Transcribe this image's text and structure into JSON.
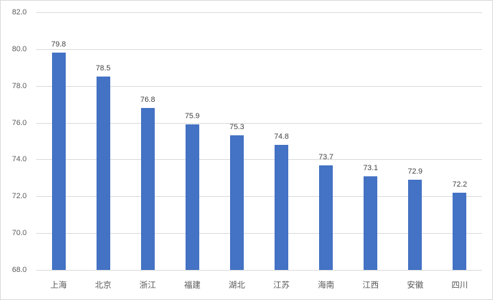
{
  "chart_data": {
    "type": "bar",
    "title": "",
    "xlabel": "",
    "ylabel": "",
    "ylim": [
      68.0,
      82.0
    ],
    "yticks": [
      "68.0",
      "70.0",
      "72.0",
      "74.0",
      "76.0",
      "78.0",
      "80.0",
      "82.0"
    ],
    "grid": true,
    "legend": null,
    "bar_color": "#4472c4",
    "categories": [
      "上海",
      "北京",
      "浙江",
      "福建",
      "湖北",
      "江苏",
      "海南",
      "江西",
      "安徽",
      "四川"
    ],
    "values": [
      79.8,
      78.5,
      76.8,
      75.9,
      75.3,
      74.8,
      73.7,
      73.1,
      72.9,
      72.2
    ],
    "data_labels": [
      "79.8",
      "78.5",
      "76.8",
      "75.9",
      "75.3",
      "74.8",
      "73.7",
      "73.1",
      "72.9",
      "72.2"
    ]
  }
}
